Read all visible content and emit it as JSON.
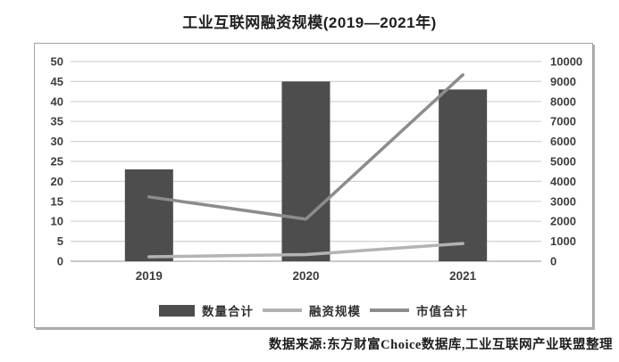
{
  "source_note": "数据来源:东方财富Choice数据库,工业互联网产业联盟整理",
  "chart_data": {
    "type": "combo",
    "title": "工业互联网融资规模(2019—2021年)",
    "categories": [
      "2019",
      "2020",
      "2021"
    ],
    "series": [
      {
        "name": "数量合计",
        "type": "bar",
        "axis": "left",
        "color": "#4d4d4d",
        "values": [
          23,
          45,
          43
        ]
      },
      {
        "name": "融资规模",
        "type": "line",
        "axis": "right",
        "color": "#b3b3b3",
        "values": [
          200,
          300,
          800
        ]
      },
      {
        "name": "市值合计",
        "type": "line",
        "axis": "right",
        "color": "#8c8c8c",
        "values": [
          2900,
          1900,
          8400
        ]
      }
    ],
    "left_axis": {
      "min": 0,
      "max": 50,
      "step": 5
    },
    "right_axis": {
      "min": 0,
      "max": 9000,
      "step": 1000
    },
    "grid": true,
    "legend_position": "bottom",
    "gridline_color": "#d2d2d2",
    "baseline_color": "#a8a8a8"
  }
}
